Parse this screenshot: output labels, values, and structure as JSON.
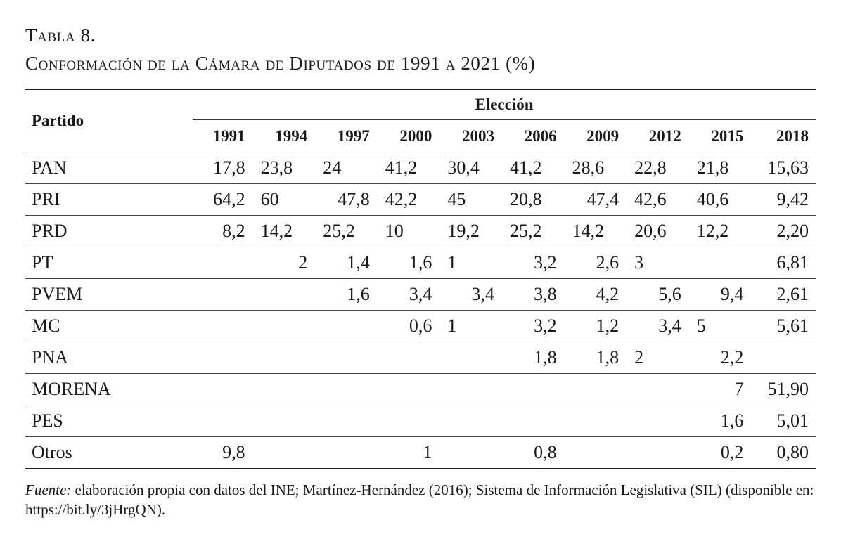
{
  "caption": {
    "line1": "Tabla 8.",
    "line2": "Conformación de la Cámara de Diputados de 1991 a 2021 (%)"
  },
  "table": {
    "party_header": "Partido",
    "group_header": "Elección",
    "years": [
      "1991",
      "1994",
      "1997",
      "2000",
      "2003",
      "2006",
      "2009",
      "2012",
      "2015",
      "2018"
    ],
    "rows": [
      {
        "party": "PAN",
        "values": [
          "17,8",
          "23,8",
          "24",
          "41,2",
          "30,4",
          "41,2",
          "28,6",
          "22,8",
          "21,8",
          "15,63"
        ]
      },
      {
        "party": "PRI",
        "values": [
          "64,2",
          "60",
          "47,8",
          "42,2",
          "45",
          "20,8",
          "47,4",
          "42,6",
          "40,6",
          "9,42"
        ]
      },
      {
        "party": "PRD",
        "values": [
          "8,2",
          "14,2",
          "25,2",
          "10",
          "19,2",
          "25,2",
          "14,2",
          "20,6",
          "12,2",
          "2,20"
        ]
      },
      {
        "party": "PT",
        "values": [
          "",
          "2",
          "1,4",
          "1,6",
          "1",
          "3,2",
          "2,6",
          "3",
          "",
          "6,81"
        ]
      },
      {
        "party": "PVEM",
        "values": [
          "",
          "",
          "1,6",
          "3,4",
          "3,4",
          "3,8",
          "4,2",
          "5,6",
          "9,4",
          "2,61"
        ]
      },
      {
        "party": "MC",
        "values": [
          "",
          "",
          "",
          "0,6",
          "1",
          "3,2",
          "1,2",
          "3,4",
          "5",
          "5,61"
        ]
      },
      {
        "party": "PNA",
        "values": [
          "",
          "",
          "",
          "",
          "",
          "1,8",
          "1,8",
          "2",
          "2,2",
          ""
        ]
      },
      {
        "party": "MORENA",
        "values": [
          "",
          "",
          "",
          "",
          "",
          "",
          "",
          "",
          "7",
          "51,90"
        ]
      },
      {
        "party": "PES",
        "values": [
          "",
          "",
          "",
          "",
          "",
          "",
          "",
          "",
          "1,6",
          "5,01"
        ]
      },
      {
        "party": "Otros",
        "values": [
          "9,8",
          "",
          "",
          "1",
          "",
          "0,8",
          "",
          "",
          "0,2",
          "0,80"
        ]
      }
    ]
  },
  "note": {
    "label": "Fuente:",
    "text": " elaboración propia con datos del INE; Martínez-Hernández (2016); Sistema de Información Legislativa (SIL) (disponible en: https://bit.ly/3jHrgQN)."
  }
}
